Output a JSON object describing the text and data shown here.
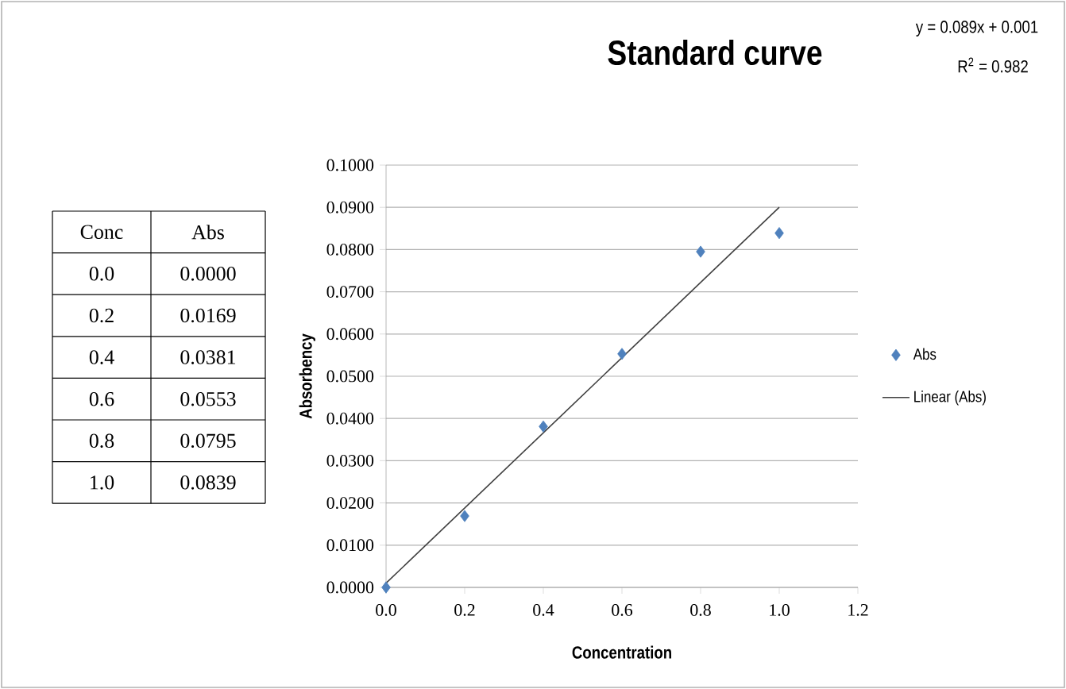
{
  "chart_data": {
    "type": "scatter",
    "title": "Standard curve",
    "xlabel": "Concentration",
    "ylabel": "Absorbency",
    "annotations": [
      "y = 0.089x + 0.001",
      "R$^{2}$ = 0.982",
      "Conc",
      "Abs",
      "0.0",
      "0.2",
      "0.4",
      "0.6",
      "0.8",
      "1.0",
      "0.0000",
      "0.0169",
      "0.0381",
      "0.0553",
      "0.0795",
      "0.0839"
    ],
    "series": [
      {
        "name": "Abs",
        "color": "#4f81bd",
        "marker": "diamond",
        "x": [
          0,
          0.2,
          0.4,
          0.6,
          0.8,
          1.0
        ],
        "values": [
          0.0,
          0.0169,
          0.0381,
          0.0553,
          0.0795,
          0.0839
        ]
      },
      {
        "name": "Linear (Abs)",
        "type": "line",
        "color": "#404040",
        "marker": "none",
        "line_style": "solid",
        "x": [
          0,
          1.0
        ],
        "values": [
          0.001,
          0.09
        ]
      }
    ],
    "xlim": [
      0,
      1.2
    ],
    "ylim": [
      0,
      0.1
    ],
    "xticks": [
      {
        "value": 0,
        "label": "0.0"
      },
      {
        "value": 0.2,
        "label": "0.2"
      },
      {
        "value": 0.4,
        "label": "0.4"
      },
      {
        "value": 0.6,
        "label": "0.6"
      },
      {
        "value": 0.8,
        "label": "0.8"
      },
      {
        "value": 1.0,
        "label": "1.0"
      },
      {
        "value": 1.2,
        "label": "1.2"
      }
    ],
    "yticks": [
      {
        "value": 0,
        "label": "0.0000"
      },
      {
        "value": 0.01,
        "label": "0.0100"
      },
      {
        "value": 0.02,
        "label": "0.0200"
      },
      {
        "value": 0.03,
        "label": "0.0300"
      },
      {
        "value": 0.04,
        "label": "0.0400"
      },
      {
        "value": 0.05,
        "label": "0.0500"
      },
      {
        "value": 0.06,
        "label": "0.0600"
      },
      {
        "value": 0.07,
        "label": "0.0700"
      },
      {
        "value": 0.08,
        "label": "0.0800"
      },
      {
        "value": 0.09,
        "label": "0.0900"
      },
      {
        "value": 0.1,
        "label": "0.1000"
      }
    ],
    "grid": "y",
    "legend": "right"
  }
}
